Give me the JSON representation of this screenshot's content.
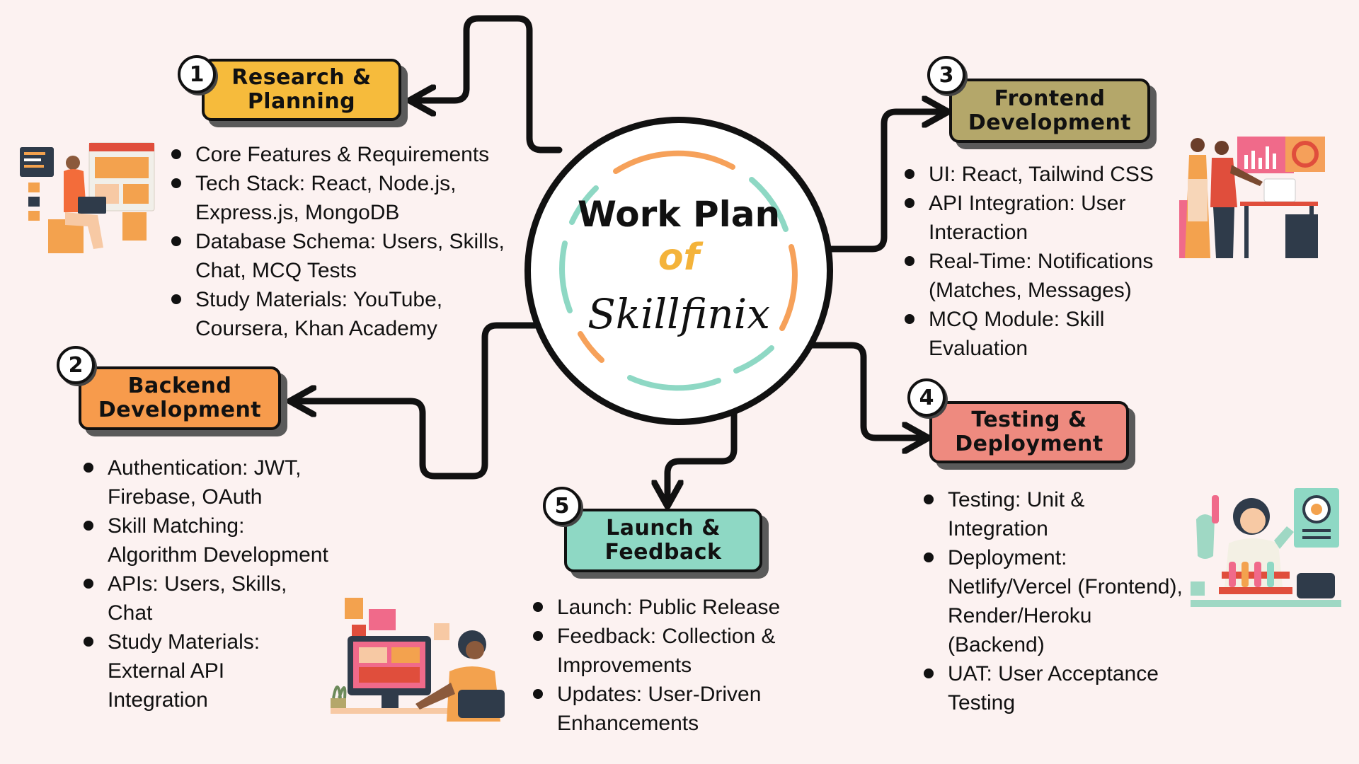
{
  "hub": {
    "title": "Work Plan",
    "of": "of",
    "brand": "Skillfinix"
  },
  "stages": [
    {
      "number": "1",
      "title": "Research &\nPlanning",
      "color": "#f6bb3c",
      "items": [
        "Core Features & Requirements",
        "Tech Stack: React, Node.js, Express.js, MongoDB",
        "Database Schema: Users, Skills, Chat, MCQ Tests",
        "Study Materials: YouTube, Coursera, Khan Academy"
      ]
    },
    {
      "number": "2",
      "title": "Backend\nDevelopment",
      "color": "#f79b4c",
      "items": [
        "Authentication: JWT, Firebase, OAuth",
        "Skill Matching: Algorithm Development",
        "APIs: Users, Skills, Chat",
        "Study Materials: External API Integration"
      ]
    },
    {
      "number": "3",
      "title": "Frontend\nDevelopment",
      "color": "#b4a76a",
      "items": [
        "UI: React, Tailwind CSS",
        "API Integration: User Interaction",
        "Real-Time: Notifications (Matches, Messages)",
        "MCQ Module: Skill Evaluation"
      ]
    },
    {
      "number": "4",
      "title": "Testing &\nDeployment",
      "color": "#ee8a7f",
      "items": [
        "Testing: Unit & Integration",
        "Deployment: Netlify/Vercel (Frontend), Render/Heroku (Backend)",
        "UAT: User Acceptance Testing"
      ]
    },
    {
      "number": "5",
      "title": "Launch &\nFeedback",
      "color": "#8ed8c4",
      "items": [
        "Launch: Public Release",
        "Feedback: Collection & Improvements",
        "Updates: User-Driven Enhancements"
      ]
    }
  ],
  "colors": {
    "background": "#fcf2f1",
    "ring_orange": "#f6a15a",
    "ring_teal": "#8ed8c4",
    "of_text": "#f4b33a"
  },
  "icons": [
    "person-laptop-illustration",
    "presentation-team-illustration",
    "scientist-lab-illustration",
    "desk-computer-illustration"
  ]
}
